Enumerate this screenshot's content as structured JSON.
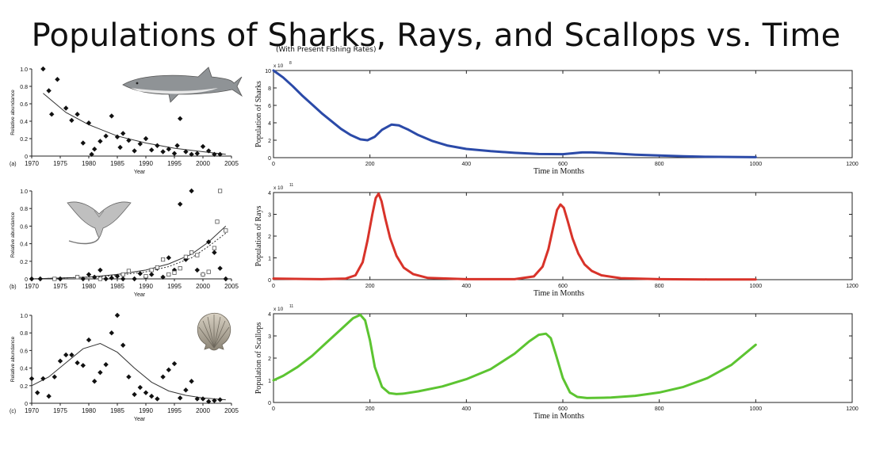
{
  "title": "Populations of Sharks, Rays, and Scallops vs. Time",
  "subtitle": "(With Present Fishing Rates)",
  "chart_data": [
    {
      "type": "scatter",
      "panel_label": "(a)",
      "xlabel": "Year",
      "ylabel": "Relative abundance",
      "xlim": [
        1970,
        2005
      ],
      "ylim": [
        0,
        1.0
      ],
      "xticks": [
        "1970",
        "1975",
        "1980",
        "1985",
        "1990",
        "1995",
        "2000",
        "2005"
      ],
      "yticks": [
        "0",
        "0.2",
        "0.4",
        "0.6",
        "0.8",
        "1.0"
      ],
      "image": "shark-image",
      "points": [
        [
          1972,
          1.0
        ],
        [
          1973,
          0.75
        ],
        [
          1973.5,
          0.48
        ],
        [
          1974.5,
          0.88
        ],
        [
          1976,
          0.55
        ],
        [
          1977,
          0.41
        ],
        [
          1978,
          0.48
        ],
        [
          1979,
          0.15
        ],
        [
          1980,
          0.38
        ],
        [
          1980.5,
          0.02
        ],
        [
          1981,
          0.08
        ],
        [
          1982,
          0.17
        ],
        [
          1983,
          0.23
        ],
        [
          1984,
          0.46
        ],
        [
          1985,
          0.22
        ],
        [
          1985.5,
          0.1
        ],
        [
          1986,
          0.26
        ],
        [
          1987,
          0.18
        ],
        [
          1988,
          0.06
        ],
        [
          1989,
          0.14
        ],
        [
          1990,
          0.2
        ],
        [
          1991,
          0.07
        ],
        [
          1992,
          0.12
        ],
        [
          1993,
          0.05
        ],
        [
          1994,
          0.08
        ],
        [
          1995,
          0.03
        ],
        [
          1995.5,
          0.12
        ],
        [
          1996,
          0.43
        ],
        [
          1997,
          0.05
        ],
        [
          1998,
          0.02
        ],
        [
          1999,
          0.03
        ],
        [
          2000,
          0.11
        ],
        [
          2001,
          0.06
        ],
        [
          2002,
          0.02
        ],
        [
          2003,
          0.02
        ]
      ],
      "fits": [
        {
          "style": "solid",
          "x": [
            1972,
            1976,
            1980,
            1985,
            1990,
            1995,
            2000,
            2004
          ],
          "y": [
            0.72,
            0.5,
            0.36,
            0.23,
            0.15,
            0.09,
            0.05,
            0.02
          ]
        }
      ]
    },
    {
      "type": "scatter",
      "panel_label": "(b)",
      "xlabel": "Year",
      "ylabel": "Relative abundance",
      "xlim": [
        1970,
        2005
      ],
      "ylim": [
        0,
        1.0
      ],
      "xticks": [
        "1970",
        "1975",
        "1980",
        "1985",
        "1990",
        "1995",
        "2000",
        "2005"
      ],
      "yticks": [
        "0",
        "0.2",
        "0.4",
        "0.6",
        "0.8",
        "1.0"
      ],
      "image": "ray-image",
      "points": [
        [
          1970,
          0.0
        ],
        [
          1971.5,
          0.0
        ],
        [
          1975,
          0.0
        ],
        [
          1979,
          0.0
        ],
        [
          1980,
          0.05
        ],
        [
          1981,
          0.02
        ],
        [
          1982,
          0.1
        ],
        [
          1983,
          0.0
        ],
        [
          1984,
          0.01
        ],
        [
          1985,
          0.03
        ],
        [
          1986,
          0.0
        ],
        [
          1988,
          0.0
        ],
        [
          1989,
          0.06
        ],
        [
          1990,
          0.02
        ],
        [
          1991,
          0.05
        ],
        [
          1992,
          0.12
        ],
        [
          1993,
          0.02
        ],
        [
          1994,
          0.24
        ],
        [
          1995,
          0.1
        ],
        [
          1996,
          0.85
        ],
        [
          1997,
          0.22
        ],
        [
          1998,
          1.0
        ],
        [
          1999,
          0.1
        ],
        [
          2000,
          0.05
        ],
        [
          2001,
          0.42
        ],
        [
          2002,
          0.3
        ],
        [
          2003,
          0.12
        ],
        [
          2004,
          0.0
        ]
      ],
      "points_alt": [
        [
          1974,
          0.0
        ],
        [
          1978,
          0.02
        ],
        [
          1982,
          0.0
        ],
        [
          1986,
          0.05
        ],
        [
          1987,
          0.09
        ],
        [
          1990,
          0.03
        ],
        [
          1991,
          0.1
        ],
        [
          1992,
          0.13
        ],
        [
          1993,
          0.22
        ],
        [
          1994,
          0.05
        ],
        [
          1995,
          0.07
        ],
        [
          1996,
          0.12
        ],
        [
          1997,
          0.25
        ],
        [
          1998,
          0.3
        ],
        [
          1999,
          0.27
        ],
        [
          2000,
          0.05
        ],
        [
          2001,
          0.08
        ],
        [
          2002,
          0.35
        ],
        [
          2002.5,
          0.65
        ],
        [
          2003,
          1.0
        ],
        [
          2004,
          0.55
        ]
      ],
      "fits": [
        {
          "style": "solid",
          "x": [
            1970,
            1980,
            1985,
            1990,
            1994,
            1998,
            2001,
            2004
          ],
          "y": [
            0.0,
            0.02,
            0.05,
            0.1,
            0.17,
            0.28,
            0.42,
            0.6
          ]
        },
        {
          "style": "dashed",
          "x": [
            1970,
            1980,
            1985,
            1990,
            1994,
            1998,
            2001,
            2004
          ],
          "y": [
            0.0,
            0.02,
            0.04,
            0.08,
            0.14,
            0.24,
            0.37,
            0.52
          ]
        }
      ]
    },
    {
      "type": "scatter",
      "panel_label": "(c)",
      "xlabel": "Year",
      "ylabel": "Relative abundance",
      "xlim": [
        1970,
        2005
      ],
      "ylim": [
        0,
        1.0
      ],
      "xticks": [
        "1970",
        "1975",
        "1980",
        "1985",
        "1990",
        "1995",
        "2000",
        "2005"
      ],
      "yticks": [
        "0",
        "0.2",
        "0.4",
        "0.6",
        "0.8",
        "1.0"
      ],
      "image": "scallop-image",
      "points": [
        [
          1970,
          0.28
        ],
        [
          1971,
          0.12
        ],
        [
          1972,
          0.28
        ],
        [
          1973,
          0.08
        ],
        [
          1974,
          0.3
        ],
        [
          1975,
          0.48
        ],
        [
          1976,
          0.55
        ],
        [
          1977,
          0.55
        ],
        [
          1978,
          0.46
        ],
        [
          1979,
          0.43
        ],
        [
          1980,
          0.72
        ],
        [
          1981,
          0.25
        ],
        [
          1982,
          0.35
        ],
        [
          1983,
          0.44
        ],
        [
          1984,
          0.8
        ],
        [
          1985,
          1.0
        ],
        [
          1986,
          0.66
        ],
        [
          1987,
          0.3
        ],
        [
          1988,
          0.1
        ],
        [
          1989,
          0.18
        ],
        [
          1990,
          0.12
        ],
        [
          1991,
          0.08
        ],
        [
          1992,
          0.05
        ],
        [
          1993,
          0.3
        ],
        [
          1994,
          0.38
        ],
        [
          1995,
          0.45
        ],
        [
          1996,
          0.06
        ],
        [
          1997,
          0.15
        ],
        [
          1998,
          0.25
        ],
        [
          1999,
          0.05
        ],
        [
          2000,
          0.05
        ],
        [
          2001,
          0.02
        ],
        [
          2002,
          0.03
        ],
        [
          2003,
          0.04
        ]
      ],
      "fits": [
        {
          "style": "solid",
          "x": [
            1970,
            1973,
            1976,
            1979,
            1982,
            1985,
            1988,
            1991,
            1994,
            1997,
            2000,
            2004
          ],
          "y": [
            0.2,
            0.3,
            0.46,
            0.62,
            0.68,
            0.58,
            0.4,
            0.24,
            0.14,
            0.09,
            0.06,
            0.04
          ]
        }
      ]
    },
    {
      "type": "line",
      "ylabel": "Population of Sharks",
      "xlabel": "Time in Months",
      "exponent": "x 10",
      "exponent_power": "8",
      "xlim": [
        0,
        1200
      ],
      "ylim": [
        0,
        10
      ],
      "xticks": [
        "0",
        "200",
        "400",
        "600",
        "800",
        "1000",
        "1200"
      ],
      "yticks": [
        "0",
        "2",
        "4",
        "6",
        "8",
        "10"
      ],
      "series": [
        {
          "color": "#2b4aa8",
          "x": [
            0,
            20,
            40,
            60,
            80,
            100,
            120,
            140,
            160,
            180,
            195,
            210,
            225,
            245,
            260,
            280,
            300,
            330,
            360,
            400,
            450,
            500,
            550,
            600,
            620,
            640,
            660,
            700,
            750,
            800,
            850,
            900,
            1000
          ],
          "y": [
            10,
            9.2,
            8.2,
            7.1,
            6.1,
            5.1,
            4.2,
            3.3,
            2.6,
            2.1,
            2.0,
            2.4,
            3.2,
            3.8,
            3.7,
            3.2,
            2.6,
            1.9,
            1.4,
            1.0,
            0.75,
            0.55,
            0.42,
            0.4,
            0.5,
            0.6,
            0.6,
            0.5,
            0.35,
            0.25,
            0.15,
            0.1,
            0.05
          ]
        }
      ]
    },
    {
      "type": "line",
      "ylabel": "Population of Rays",
      "xlabel": "Time in Months",
      "exponent": "x 10",
      "exponent_power": "11",
      "xlim": [
        0,
        1200
      ],
      "ylim": [
        0,
        4
      ],
      "xticks": [
        "0",
        "200",
        "400",
        "600",
        "800",
        "1000",
        "1200"
      ],
      "yticks": [
        "0",
        "1",
        "2",
        "3",
        "4"
      ],
      "series": [
        {
          "color": "#d8332a",
          "x": [
            0,
            100,
            150,
            170,
            185,
            195,
            205,
            212,
            218,
            224,
            232,
            242,
            255,
            270,
            290,
            320,
            400,
            500,
            540,
            558,
            570,
            580,
            588,
            595,
            602,
            610,
            620,
            632,
            645,
            660,
            680,
            720,
            800,
            900,
            1000
          ],
          "y": [
            0.05,
            0.02,
            0.05,
            0.2,
            0.8,
            1.8,
            3.0,
            3.75,
            3.95,
            3.6,
            2.8,
            1.9,
            1.1,
            0.55,
            0.25,
            0.08,
            0.02,
            0.02,
            0.15,
            0.6,
            1.4,
            2.4,
            3.2,
            3.45,
            3.3,
            2.7,
            1.9,
            1.2,
            0.7,
            0.4,
            0.2,
            0.07,
            0.02,
            0.01,
            0.01
          ]
        }
      ]
    },
    {
      "type": "line",
      "ylabel": "Population of Scallops",
      "xlabel": "Time in Months",
      "exponent": "x 10",
      "exponent_power": "11",
      "xlim": [
        0,
        1200
      ],
      "ylim": [
        0,
        4
      ],
      "xticks": [
        "0",
        "200",
        "400",
        "600",
        "800",
        "1000",
        "1200"
      ],
      "yticks": [
        "0",
        "1",
        "2",
        "3",
        "4"
      ],
      "series": [
        {
          "color": "#5cc431",
          "x": [
            0,
            20,
            50,
            80,
            110,
            140,
            165,
            180,
            190,
            200,
            210,
            225,
            240,
            255,
            270,
            300,
            350,
            400,
            450,
            500,
            530,
            550,
            565,
            575,
            585,
            600,
            615,
            630,
            650,
            700,
            750,
            800,
            850,
            900,
            950,
            1000
          ],
          "y": [
            1.0,
            1.2,
            1.6,
            2.1,
            2.7,
            3.3,
            3.8,
            3.95,
            3.7,
            2.8,
            1.6,
            0.7,
            0.42,
            0.38,
            0.4,
            0.5,
            0.72,
            1.05,
            1.5,
            2.2,
            2.75,
            3.05,
            3.1,
            2.9,
            2.2,
            1.1,
            0.45,
            0.25,
            0.2,
            0.22,
            0.3,
            0.45,
            0.7,
            1.1,
            1.7,
            2.6
          ]
        }
      ]
    }
  ]
}
